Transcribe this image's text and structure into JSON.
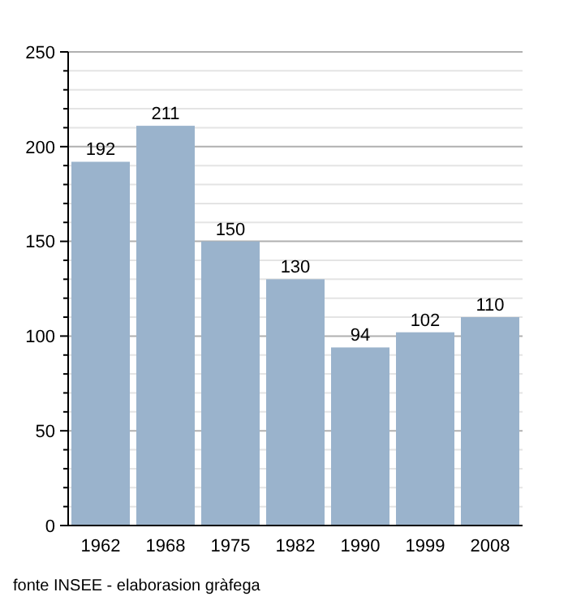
{
  "chart_data": {
    "type": "bar",
    "categories": [
      "1962",
      "1968",
      "1975",
      "1982",
      "1990",
      "1999",
      "2008"
    ],
    "values": [
      192,
      211,
      150,
      130,
      94,
      102,
      110
    ],
    "color": "#9ab3cc",
    "data_labels": true,
    "ylim": [
      0,
      250
    ],
    "yticks": [
      0,
      {
        "value": 10,
        "label": null
      },
      {
        "value": 20,
        "label": null
      },
      {
        "value": 30,
        "label": null
      },
      {
        "value": 40,
        "label": null
      },
      50,
      {
        "value": 60,
        "label": null
      },
      {
        "value": 70,
        "label": null
      },
      {
        "value": 80,
        "label": null
      },
      {
        "value": 90,
        "label": null
      },
      100,
      {
        "value": 110,
        "label": null
      },
      {
        "value": 120,
        "label": null
      },
      {
        "value": 130,
        "label": null
      },
      {
        "value": 140,
        "label": null
      },
      150,
      {
        "value": 160,
        "label": null
      },
      {
        "value": 170,
        "label": null
      },
      {
        "value": 180,
        "label": null
      },
      {
        "value": 190,
        "label": null
      },
      200,
      {
        "value": 210,
        "label": null
      },
      {
        "value": 220,
        "label": null
      },
      {
        "value": 230,
        "label": null
      },
      {
        "value": 240,
        "label": null
      },
      250
    ],
    "grid": true,
    "annotations": [
      "fonte INSEE - elaborasion gràfega"
    ]
  }
}
